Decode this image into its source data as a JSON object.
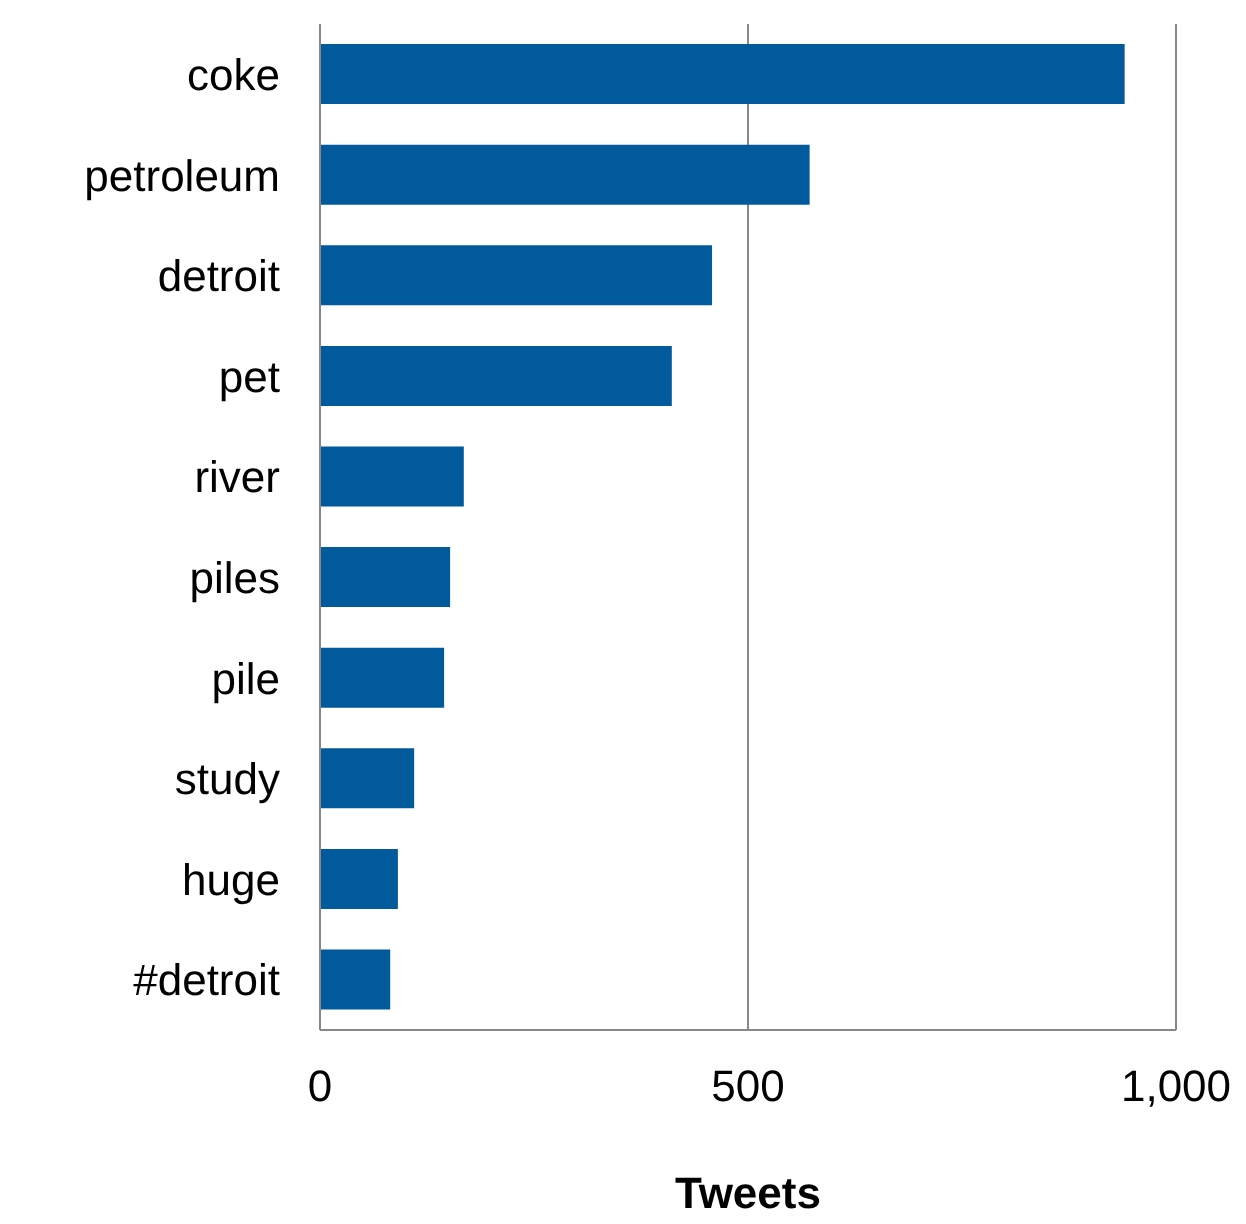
{
  "chart_data": {
    "type": "bar",
    "orientation": "horizontal",
    "xlabel": "Tweets",
    "categories": [
      "coke",
      "petroleum",
      "detroit",
      "pet",
      "river",
      "piles",
      "pile",
      "study",
      "huge",
      "#detroit"
    ],
    "values": [
      940,
      572,
      458,
      411,
      168,
      152,
      145,
      110,
      91,
      82
    ],
    "color": "#005a9c",
    "xlim": [
      0,
      1000
    ],
    "xticks": [
      0,
      500,
      {
        "value": 1000,
        "label": "1,000"
      }
    ],
    "grid": "x",
    "legend": false
  }
}
